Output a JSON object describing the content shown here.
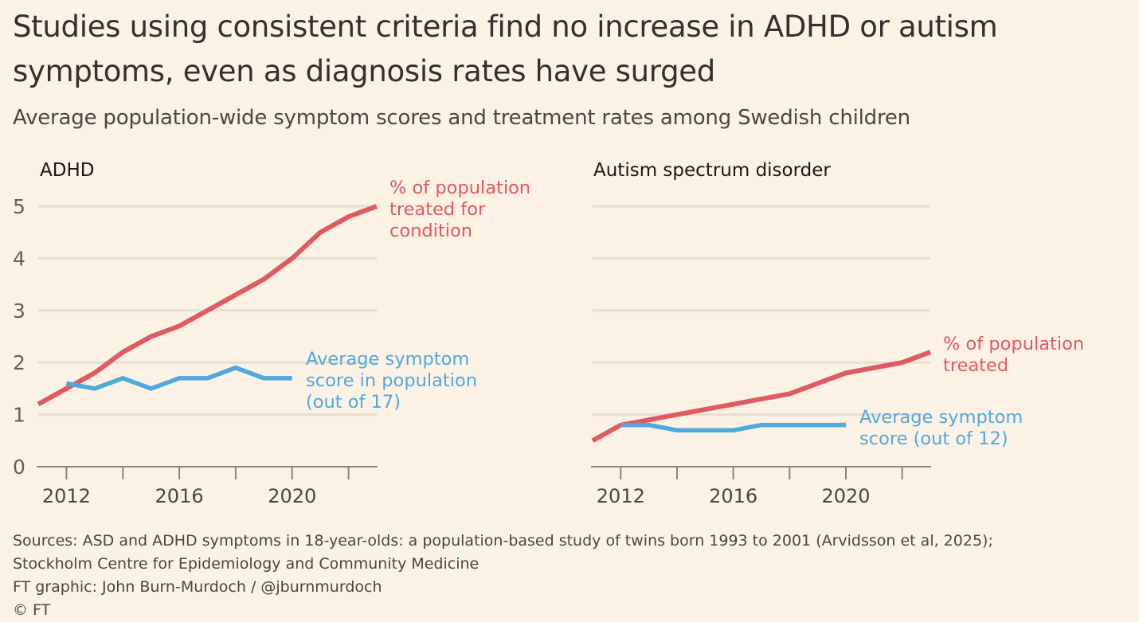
{
  "title": "Studies using consistent criteria find no increase in ADHD or autism symptoms, even as diagnosis rates have surged",
  "subtitle": "Average population-wide symptom scores and treatment rates among Swedish children",
  "colors": {
    "background": "#fcf1e5",
    "treated": "#e05a62",
    "symptom": "#4fa9dd",
    "grid": "#e7ddd1"
  },
  "chart_data": [
    {
      "type": "line",
      "title": "ADHD",
      "xlim": [
        2011,
        2023
      ],
      "ylim": [
        0,
        5
      ],
      "yticks": [
        "0",
        "1",
        "2",
        "3",
        "4",
        "5"
      ],
      "xtick_labels": [
        "2012",
        "2016",
        "2020"
      ],
      "grid": true,
      "series": [
        {
          "name": "% of population treated for condition",
          "label_lines": [
            "% of population",
            "treated for",
            "condition"
          ],
          "color": "#e05a62",
          "x": [
            2011,
            2012,
            2013,
            2014,
            2015,
            2016,
            2017,
            2018,
            2019,
            2020,
            2021,
            2022,
            2023
          ],
          "y": [
            1.2,
            1.5,
            1.8,
            2.2,
            2.5,
            2.7,
            3.0,
            3.3,
            3.6,
            4.0,
            4.5,
            4.8,
            5.0
          ]
        },
        {
          "name": "Average symptom score in population (out of 17)",
          "label_lines": [
            "Average symptom",
            "score in population",
            "(out of 17)"
          ],
          "color": "#4fa9dd",
          "x": [
            2012,
            2013,
            2014,
            2015,
            2016,
            2017,
            2018,
            2019,
            2020
          ],
          "y": [
            1.6,
            1.5,
            1.7,
            1.5,
            1.7,
            1.7,
            1.9,
            1.7,
            1.7
          ]
        }
      ]
    },
    {
      "type": "line",
      "title": "Autism spectrum disorder",
      "xlim": [
        2011,
        2023
      ],
      "ylim": [
        0,
        5
      ],
      "xtick_labels": [
        "2012",
        "2016",
        "2020"
      ],
      "grid": true,
      "series": [
        {
          "name": "% of population treated",
          "label_lines": [
            "% of population",
            "treated"
          ],
          "color": "#e05a62",
          "x": [
            2011,
            2012,
            2013,
            2014,
            2015,
            2016,
            2017,
            2018,
            2019,
            2020,
            2021,
            2022,
            2023
          ],
          "y": [
            0.5,
            0.8,
            0.9,
            1.0,
            1.1,
            1.2,
            1.3,
            1.4,
            1.6,
            1.8,
            1.9,
            2.0,
            2.2
          ]
        },
        {
          "name": "Average symptom score (out of 12)",
          "label_lines": [
            "Average symptom",
            "score (out of 12)"
          ],
          "color": "#4fa9dd",
          "x": [
            2012,
            2013,
            2014,
            2015,
            2016,
            2017,
            2018,
            2019,
            2020
          ],
          "y": [
            0.8,
            0.8,
            0.7,
            0.7,
            0.7,
            0.8,
            0.8,
            0.8,
            0.8
          ]
        }
      ]
    }
  ],
  "sources": [
    "Sources: ASD and ADHD symptoms in 18-year-olds: a population-based study of twins born 1993 to 2001 (Arvidsson et al, 2025);",
    "Stockholm Centre for Epidemiology and Community Medicine",
    "FT graphic: John Burn-Murdoch / @jburnmurdoch",
    "© FT"
  ]
}
